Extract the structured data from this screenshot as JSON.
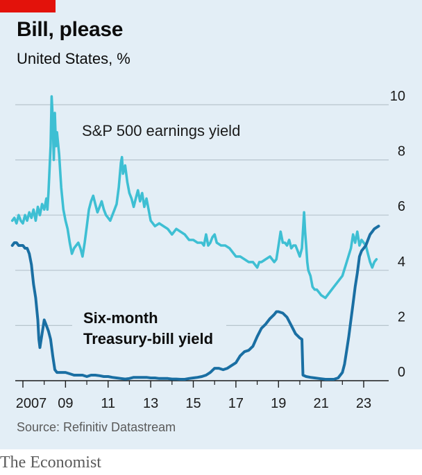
{
  "header": {
    "title": "Bill, please",
    "subtitle": "United States, %"
  },
  "footer": {
    "source": "Source: Refinitiv Datastream",
    "brand": "The Economist"
  },
  "chart_data": {
    "type": "line",
    "title": "Bill, please",
    "subtitle": "United States, %",
    "ylim": [
      0,
      10
    ],
    "xlim": [
      2006.5,
      2023.8
    ],
    "y_ticks": [
      0,
      2,
      4,
      6,
      8,
      10
    ],
    "x_ticks": [
      2007,
      2009,
      2011,
      2013,
      2015,
      2017,
      2019,
      2021,
      2023
    ],
    "x_tick_labels": [
      "2007",
      "09",
      "11",
      "13",
      "15",
      "17",
      "19",
      "21",
      "23"
    ],
    "grid": "horizontal",
    "colors": {
      "sp500": "#3ebfd3",
      "tbill": "#1a6fa3",
      "background": "#e3eef6",
      "brand_red": "#e3120b"
    },
    "series": [
      {
        "name": "S&P 500 earnings yield",
        "label_lines": [
          "S&P 500 earnings yield"
        ],
        "color": "#3ebfd3",
        "points": [
          [
            2006.5,
            5.8
          ],
          [
            2006.6,
            5.9
          ],
          [
            2006.7,
            5.7
          ],
          [
            2006.8,
            6.0
          ],
          [
            2006.9,
            5.8
          ],
          [
            2007.0,
            5.7
          ],
          [
            2007.1,
            6.0
          ],
          [
            2007.2,
            5.8
          ],
          [
            2007.3,
            6.1
          ],
          [
            2007.4,
            5.9
          ],
          [
            2007.5,
            6.2
          ],
          [
            2007.6,
            5.8
          ],
          [
            2007.7,
            6.3
          ],
          [
            2007.8,
            6.0
          ],
          [
            2007.9,
            6.4
          ],
          [
            2008.0,
            6.2
          ],
          [
            2008.1,
            6.6
          ],
          [
            2008.15,
            6.2
          ],
          [
            2008.2,
            6.8
          ],
          [
            2008.3,
            8.5
          ],
          [
            2008.35,
            10.3
          ],
          [
            2008.4,
            9.5
          ],
          [
            2008.45,
            8.0
          ],
          [
            2008.5,
            9.7
          ],
          [
            2008.55,
            8.5
          ],
          [
            2008.6,
            9.0
          ],
          [
            2008.7,
            8.2
          ],
          [
            2008.75,
            7.6
          ],
          [
            2008.8,
            7.0
          ],
          [
            2008.9,
            6.2
          ],
          [
            2009.0,
            5.8
          ],
          [
            2009.1,
            5.5
          ],
          [
            2009.2,
            5.0
          ],
          [
            2009.3,
            4.6
          ],
          [
            2009.4,
            4.8
          ],
          [
            2009.5,
            4.9
          ],
          [
            2009.6,
            5.0
          ],
          [
            2009.7,
            4.8
          ],
          [
            2009.8,
            4.5
          ],
          [
            2009.9,
            5.0
          ],
          [
            2010.0,
            5.6
          ],
          [
            2010.1,
            6.2
          ],
          [
            2010.2,
            6.5
          ],
          [
            2010.3,
            6.7
          ],
          [
            2010.4,
            6.4
          ],
          [
            2010.5,
            6.1
          ],
          [
            2010.6,
            6.3
          ],
          [
            2010.7,
            6.5
          ],
          [
            2010.8,
            6.2
          ],
          [
            2010.9,
            6.0
          ],
          [
            2011.0,
            5.9
          ],
          [
            2011.1,
            5.8
          ],
          [
            2011.2,
            6.0
          ],
          [
            2011.3,
            6.2
          ],
          [
            2011.4,
            6.4
          ],
          [
            2011.5,
            7.0
          ],
          [
            2011.6,
            7.9
          ],
          [
            2011.65,
            8.1
          ],
          [
            2011.7,
            7.5
          ],
          [
            2011.8,
            7.8
          ],
          [
            2011.9,
            7.2
          ],
          [
            2012.0,
            6.8
          ],
          [
            2012.1,
            6.6
          ],
          [
            2012.2,
            6.3
          ],
          [
            2012.3,
            6.6
          ],
          [
            2012.4,
            6.9
          ],
          [
            2012.5,
            6.5
          ],
          [
            2012.6,
            6.8
          ],
          [
            2012.7,
            6.3
          ],
          [
            2012.8,
            6.6
          ],
          [
            2012.9,
            6.2
          ],
          [
            2013.0,
            5.8
          ],
          [
            2013.2,
            5.6
          ],
          [
            2013.4,
            5.7
          ],
          [
            2013.6,
            5.6
          ],
          [
            2013.8,
            5.5
          ],
          [
            2014.0,
            5.3
          ],
          [
            2014.2,
            5.5
          ],
          [
            2014.4,
            5.4
          ],
          [
            2014.6,
            5.3
          ],
          [
            2014.8,
            5.1
          ],
          [
            2015.0,
            5.1
          ],
          [
            2015.2,
            5.0
          ],
          [
            2015.4,
            5.0
          ],
          [
            2015.5,
            4.9
          ],
          [
            2015.6,
            5.3
          ],
          [
            2015.7,
            4.9
          ],
          [
            2015.8,
            5.0
          ],
          [
            2015.9,
            5.2
          ],
          [
            2016.0,
            5.3
          ],
          [
            2016.1,
            5.0
          ],
          [
            2016.3,
            4.9
          ],
          [
            2016.5,
            4.9
          ],
          [
            2016.7,
            4.8
          ],
          [
            2016.9,
            4.6
          ],
          [
            2017.0,
            4.5
          ],
          [
            2017.2,
            4.5
          ],
          [
            2017.4,
            4.4
          ],
          [
            2017.6,
            4.3
          ],
          [
            2017.8,
            4.3
          ],
          [
            2018.0,
            4.1
          ],
          [
            2018.1,
            4.3
          ],
          [
            2018.2,
            4.3
          ],
          [
            2018.4,
            4.4
          ],
          [
            2018.6,
            4.5
          ],
          [
            2018.8,
            4.3
          ],
          [
            2018.9,
            4.4
          ],
          [
            2019.0,
            4.9
          ],
          [
            2019.1,
            5.4
          ],
          [
            2019.2,
            5.0
          ],
          [
            2019.3,
            5.0
          ],
          [
            2019.4,
            4.9
          ],
          [
            2019.5,
            5.1
          ],
          [
            2019.6,
            4.8
          ],
          [
            2019.7,
            4.9
          ],
          [
            2019.8,
            4.9
          ],
          [
            2019.9,
            4.7
          ],
          [
            2020.0,
            4.5
          ],
          [
            2020.1,
            4.8
          ],
          [
            2020.2,
            6.1
          ],
          [
            2020.25,
            5.4
          ],
          [
            2020.3,
            4.9
          ],
          [
            2020.35,
            4.3
          ],
          [
            2020.4,
            4.0
          ],
          [
            2020.5,
            3.8
          ],
          [
            2020.6,
            3.4
          ],
          [
            2020.7,
            3.3
          ],
          [
            2020.8,
            3.3
          ],
          [
            2020.9,
            3.2
          ],
          [
            2021.0,
            3.1
          ],
          [
            2021.2,
            3.0
          ],
          [
            2021.4,
            3.2
          ],
          [
            2021.6,
            3.4
          ],
          [
            2021.8,
            3.6
          ],
          [
            2022.0,
            3.8
          ],
          [
            2022.2,
            4.3
          ],
          [
            2022.4,
            4.8
          ],
          [
            2022.5,
            5.3
          ],
          [
            2022.6,
            5.0
          ],
          [
            2022.7,
            5.4
          ],
          [
            2022.8,
            4.9
          ],
          [
            2022.9,
            5.1
          ],
          [
            2023.0,
            5.0
          ],
          [
            2023.1,
            4.9
          ],
          [
            2023.2,
            4.6
          ],
          [
            2023.3,
            4.3
          ],
          [
            2023.4,
            4.1
          ],
          [
            2023.5,
            4.3
          ],
          [
            2023.6,
            4.4
          ]
        ]
      },
      {
        "name": "Six-month Treasury-bill yield",
        "label_lines": [
          "Six-month",
          "Treasury-bill yield"
        ],
        "color": "#1a6fa3",
        "points": [
          [
            2006.5,
            4.9
          ],
          [
            2006.6,
            5.0
          ],
          [
            2006.7,
            5.0
          ],
          [
            2006.8,
            4.9
          ],
          [
            2006.9,
            4.9
          ],
          [
            2007.0,
            4.9
          ],
          [
            2007.1,
            4.8
          ],
          [
            2007.2,
            4.8
          ],
          [
            2007.3,
            4.6
          ],
          [
            2007.4,
            4.2
          ],
          [
            2007.5,
            3.5
          ],
          [
            2007.6,
            3.0
          ],
          [
            2007.7,
            2.2
          ],
          [
            2007.75,
            1.5
          ],
          [
            2007.8,
            1.2
          ],
          [
            2007.9,
            1.7
          ],
          [
            2008.0,
            2.2
          ],
          [
            2008.1,
            2.0
          ],
          [
            2008.2,
            1.8
          ],
          [
            2008.3,
            1.5
          ],
          [
            2008.4,
            0.9
          ],
          [
            2008.5,
            0.4
          ],
          [
            2008.6,
            0.3
          ],
          [
            2008.7,
            0.3
          ],
          [
            2008.8,
            0.3
          ],
          [
            2009.0,
            0.3
          ],
          [
            2009.2,
            0.25
          ],
          [
            2009.4,
            0.2
          ],
          [
            2009.6,
            0.2
          ],
          [
            2009.8,
            0.2
          ],
          [
            2010.0,
            0.15
          ],
          [
            2010.2,
            0.2
          ],
          [
            2010.4,
            0.2
          ],
          [
            2010.6,
            0.18
          ],
          [
            2010.8,
            0.15
          ],
          [
            2011.0,
            0.15
          ],
          [
            2011.2,
            0.12
          ],
          [
            2011.4,
            0.1
          ],
          [
            2011.6,
            0.08
          ],
          [
            2011.8,
            0.06
          ],
          [
            2012.0,
            0.08
          ],
          [
            2012.2,
            0.12
          ],
          [
            2012.4,
            0.12
          ],
          [
            2012.6,
            0.12
          ],
          [
            2012.8,
            0.12
          ],
          [
            2013.0,
            0.1
          ],
          [
            2013.2,
            0.1
          ],
          [
            2013.4,
            0.08
          ],
          [
            2013.6,
            0.08
          ],
          [
            2013.8,
            0.08
          ],
          [
            2014.0,
            0.06
          ],
          [
            2014.2,
            0.06
          ],
          [
            2014.4,
            0.05
          ],
          [
            2014.6,
            0.05
          ],
          [
            2014.8,
            0.08
          ],
          [
            2015.0,
            0.1
          ],
          [
            2015.2,
            0.12
          ],
          [
            2015.4,
            0.15
          ],
          [
            2015.6,
            0.2
          ],
          [
            2015.8,
            0.3
          ],
          [
            2016.0,
            0.45
          ],
          [
            2016.2,
            0.45
          ],
          [
            2016.4,
            0.4
          ],
          [
            2016.6,
            0.45
          ],
          [
            2016.8,
            0.55
          ],
          [
            2017.0,
            0.65
          ],
          [
            2017.2,
            0.9
          ],
          [
            2017.4,
            1.05
          ],
          [
            2017.6,
            1.1
          ],
          [
            2017.8,
            1.25
          ],
          [
            2018.0,
            1.6
          ],
          [
            2018.2,
            1.9
          ],
          [
            2018.4,
            2.05
          ],
          [
            2018.6,
            2.25
          ],
          [
            2018.8,
            2.4
          ],
          [
            2018.9,
            2.5
          ],
          [
            2019.0,
            2.5
          ],
          [
            2019.2,
            2.45
          ],
          [
            2019.4,
            2.3
          ],
          [
            2019.6,
            2.0
          ],
          [
            2019.8,
            1.7
          ],
          [
            2020.0,
            1.55
          ],
          [
            2020.1,
            1.5
          ],
          [
            2020.15,
            0.2
          ],
          [
            2020.3,
            0.15
          ],
          [
            2020.5,
            0.12
          ],
          [
            2020.7,
            0.1
          ],
          [
            2020.9,
            0.08
          ],
          [
            2021.0,
            0.07
          ],
          [
            2021.2,
            0.05
          ],
          [
            2021.4,
            0.05
          ],
          [
            2021.6,
            0.05
          ],
          [
            2021.8,
            0.1
          ],
          [
            2022.0,
            0.3
          ],
          [
            2022.1,
            0.6
          ],
          [
            2022.2,
            1.1
          ],
          [
            2022.3,
            1.6
          ],
          [
            2022.4,
            2.2
          ],
          [
            2022.5,
            2.8
          ],
          [
            2022.6,
            3.4
          ],
          [
            2022.7,
            3.9
          ],
          [
            2022.8,
            4.5
          ],
          [
            2022.9,
            4.7
          ],
          [
            2023.0,
            4.8
          ],
          [
            2023.1,
            4.9
          ],
          [
            2023.2,
            5.1
          ],
          [
            2023.3,
            5.3
          ],
          [
            2023.4,
            5.4
          ],
          [
            2023.5,
            5.5
          ],
          [
            2023.6,
            5.55
          ],
          [
            2023.7,
            5.6
          ]
        ]
      }
    ]
  }
}
